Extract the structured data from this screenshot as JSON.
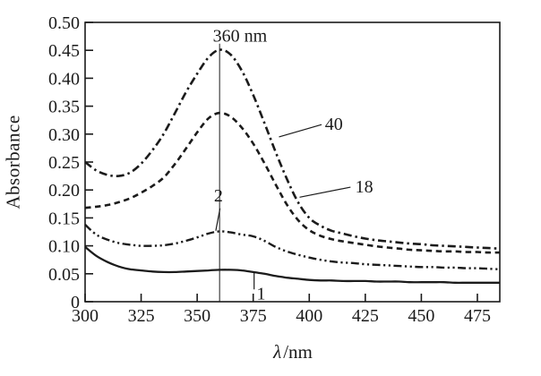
{
  "chart_data": {
    "type": "line",
    "title": "",
    "xlabel": "λ/nm",
    "xlabel_parts": {
      "symbol": "λ",
      "unit": "/nm"
    },
    "ylabel": "Absorbance",
    "xlim": [
      300,
      485
    ],
    "ylim": [
      0,
      0.5
    ],
    "x_ticks": [
      300,
      325,
      350,
      375,
      400,
      425,
      450,
      475
    ],
    "y_ticks": [
      0,
      0.05,
      0.1,
      0.15,
      0.2,
      0.25,
      0.3,
      0.35,
      0.4,
      0.45,
      0.5
    ],
    "y_tick_labels": [
      "0",
      "0.05",
      "0.10",
      "0.15",
      "0.20",
      "0.25",
      "0.30",
      "0.35",
      "0.40",
      "0.45",
      "0.50"
    ],
    "grid": false,
    "legend_position": "none",
    "background": "#ffffff",
    "ink_color": "#1b1b1b",
    "x": [
      300,
      305,
      310,
      315,
      320,
      325,
      330,
      335,
      340,
      345,
      350,
      355,
      360,
      365,
      370,
      375,
      380,
      385,
      390,
      395,
      400,
      405,
      410,
      415,
      420,
      425,
      430,
      435,
      440,
      445,
      450,
      455,
      460,
      465,
      470,
      475,
      480,
      485
    ],
    "series": [
      {
        "name": "40",
        "line_style": "dash-dot",
        "values": [
          0.25,
          0.235,
          0.227,
          0.225,
          0.231,
          0.247,
          0.271,
          0.3,
          0.337,
          0.375,
          0.408,
          0.437,
          0.451,
          0.442,
          0.413,
          0.37,
          0.32,
          0.268,
          0.22,
          0.178,
          0.15,
          0.136,
          0.127,
          0.122,
          0.117,
          0.113,
          0.11,
          0.108,
          0.106,
          0.104,
          0.103,
          0.101,
          0.1,
          0.099,
          0.098,
          0.097,
          0.096,
          0.095
        ]
      },
      {
        "name": "18",
        "line_style": "dashed",
        "values": [
          0.168,
          0.17,
          0.173,
          0.178,
          0.185,
          0.195,
          0.207,
          0.222,
          0.246,
          0.274,
          0.303,
          0.328,
          0.338,
          0.331,
          0.311,
          0.283,
          0.248,
          0.21,
          0.174,
          0.146,
          0.128,
          0.118,
          0.112,
          0.108,
          0.105,
          0.102,
          0.099,
          0.097,
          0.095,
          0.093,
          0.092,
          0.091,
          0.09,
          0.09,
          0.089,
          0.089,
          0.088,
          0.088
        ]
      },
      {
        "name": "2",
        "line_style": "dash-dot-dot",
        "values": [
          0.138,
          0.12,
          0.111,
          0.105,
          0.102,
          0.1,
          0.1,
          0.101,
          0.104,
          0.109,
          0.115,
          0.122,
          0.126,
          0.124,
          0.12,
          0.117,
          0.109,
          0.098,
          0.09,
          0.084,
          0.079,
          0.075,
          0.072,
          0.07,
          0.069,
          0.067,
          0.066,
          0.065,
          0.064,
          0.063,
          0.062,
          0.062,
          0.061,
          0.061,
          0.06,
          0.06,
          0.059,
          0.058
        ]
      },
      {
        "name": "1",
        "line_style": "solid",
        "values": [
          0.098,
          0.082,
          0.071,
          0.063,
          0.058,
          0.056,
          0.054,
          0.053,
          0.053,
          0.054,
          0.055,
          0.056,
          0.057,
          0.057,
          0.056,
          0.053,
          0.05,
          0.046,
          0.043,
          0.041,
          0.039,
          0.038,
          0.038,
          0.037,
          0.037,
          0.037,
          0.036,
          0.036,
          0.036,
          0.035,
          0.035,
          0.035,
          0.035,
          0.034,
          0.034,
          0.034,
          0.034,
          0.034
        ]
      }
    ],
    "reference_line": {
      "x_nm": 360,
      "y_abs_bottom": 0.0,
      "y_abs_top": 0.462
    },
    "annotations": [
      {
        "text": "360 nm",
        "x_nm": 357.0,
        "y_abs": 0.475,
        "anchor": "start",
        "leader": null
      },
      {
        "text": "40",
        "x_nm": 411.0,
        "y_abs": 0.317,
        "anchor": "middle",
        "leader": [
          386.5,
          0.295,
          405.5,
          0.317
        ]
      },
      {
        "text": "18",
        "x_nm": 424.5,
        "y_abs": 0.205,
        "anchor": "middle",
        "leader": [
          395.7,
          0.187,
          418.4,
          0.205
        ]
      },
      {
        "text": "2",
        "x_nm": 359.5,
        "y_abs": 0.189,
        "anchor": "middle",
        "leader": [
          360.2,
          0.167,
          358.3,
          0.127
        ]
      },
      {
        "text": "1",
        "x_nm": 378.5,
        "y_abs": 0.014,
        "anchor": "middle",
        "leader": [
          375.4,
          0.054,
          375.4,
          0.022
        ]
      }
    ]
  }
}
